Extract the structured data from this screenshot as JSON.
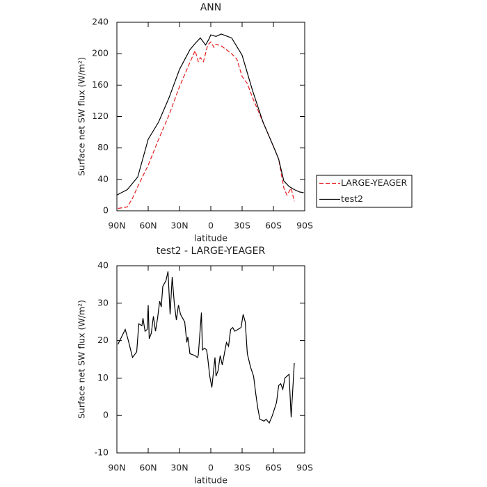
{
  "chart_data": [
    {
      "type": "line",
      "title": "ANN",
      "xlabel": "latitude",
      "ylabel": "Surface net SW flux (W/m²)",
      "xlim": [
        90,
        -90
      ],
      "xticks": [
        {
          "value": 90,
          "label": "90N"
        },
        {
          "value": 60,
          "label": "60N"
        },
        {
          "value": 30,
          "label": "30N"
        },
        0,
        {
          "value": -30,
          "label": "30S"
        },
        {
          "value": -60,
          "label": "60S"
        },
        {
          "value": -90,
          "label": "90S"
        }
      ],
      "ylim": [
        0,
        240
      ],
      "yticks": [
        0,
        40,
        80,
        120,
        160,
        200,
        240
      ],
      "legend": "right",
      "series": [
        {
          "name": "LARGE-YEAGER",
          "color": "#e41a1c",
          "dash": true,
          "x": [
            89,
            80,
            75,
            70,
            60,
            50,
            40,
            30,
            20,
            15,
            12,
            10,
            7,
            3,
            0,
            -3,
            -5,
            -10,
            -20,
            -25,
            -30,
            -35,
            -40,
            -50,
            -60,
            -65,
            -70,
            -73,
            -77,
            -80
          ],
          "values": [
            3,
            5,
            16,
            31,
            58,
            91,
            122,
            158,
            189,
            204,
            190,
            195,
            190,
            211,
            215,
            208,
            212,
            210,
            200,
            193,
            171,
            162,
            144,
            113,
            82,
            66,
            29,
            20,
            29,
            12
          ]
        },
        {
          "name": "test2",
          "color": "#000000",
          "dash": false,
          "x": [
            90,
            80,
            70,
            60,
            50,
            40,
            30,
            20,
            15,
            10,
            5,
            2,
            0,
            -5,
            -10,
            -20,
            -30,
            -40,
            -50,
            -60,
            -65,
            -70,
            -75,
            -80,
            -85,
            -89
          ],
          "values": [
            20,
            27,
            43,
            91,
            113,
            144,
            180,
            205,
            213,
            220,
            211,
            218,
            224,
            222,
            225,
            220,
            198,
            153,
            113,
            82,
            66,
            38,
            31,
            27,
            24,
            23
          ]
        }
      ]
    },
    {
      "type": "line",
      "title": "test2 - LARGE-YEAGER",
      "xlabel": "latitude",
      "ylabel": "Surface net SW flux (W/m²)",
      "xlim": [
        90,
        -90
      ],
      "xticks": [
        {
          "value": 90,
          "label": "90N"
        },
        {
          "value": 60,
          "label": "60N"
        },
        {
          "value": 30,
          "label": "30N"
        },
        0,
        {
          "value": -30,
          "label": "30S"
        },
        {
          "value": -60,
          "label": "60S"
        },
        {
          "value": -90,
          "label": "90S"
        }
      ],
      "ylim": [
        -10,
        40
      ],
      "yticks": [
        -10,
        0,
        10,
        20,
        30,
        40
      ],
      "series": [
        {
          "color": "#000000",
          "dash": false,
          "x": [
            89,
            82,
            79,
            75,
            71,
            69,
            66,
            65,
            63,
            61,
            60,
            59,
            57,
            55,
            53,
            51,
            49,
            47.5,
            46,
            43,
            41,
            39,
            37,
            35,
            33,
            31,
            29,
            25,
            23,
            22,
            20,
            15,
            13,
            12,
            9,
            8,
            6,
            4,
            3,
            1,
            -1,
            -4,
            -5,
            -7,
            -9,
            -11,
            -13,
            -15,
            -17,
            -19,
            -21,
            -23,
            -26,
            -29,
            -31,
            -33,
            -35,
            -38,
            -41,
            -43,
            -45,
            -47,
            -51,
            -53,
            -56,
            -59,
            -63,
            -65,
            -67,
            -69,
            -71,
            -73,
            -75,
            -77,
            -80
          ],
          "values": [
            19,
            23,
            20,
            15.5,
            17,
            24.5,
            24,
            26,
            22.5,
            23,
            29.5,
            20.5,
            22,
            26.5,
            22.5,
            26,
            30.5,
            29,
            34.5,
            36,
            38.5,
            27,
            37,
            30,
            25.5,
            29.5,
            27,
            25,
            19.5,
            21,
            16.5,
            16,
            15.5,
            16,
            27.5,
            17.5,
            18,
            17.5,
            15.5,
            10.5,
            7.5,
            15.5,
            10.5,
            12,
            16,
            13.5,
            16.5,
            19.5,
            18.5,
            23,
            23.5,
            22.5,
            23,
            23.5,
            27,
            25,
            16.5,
            13,
            10.5,
            6,
            2,
            -1,
            -1.5,
            -1,
            -2,
            0,
            3.5,
            8,
            8.5,
            7,
            10,
            10.5,
            11,
            -0.5,
            14
          ]
        }
      ]
    }
  ]
}
